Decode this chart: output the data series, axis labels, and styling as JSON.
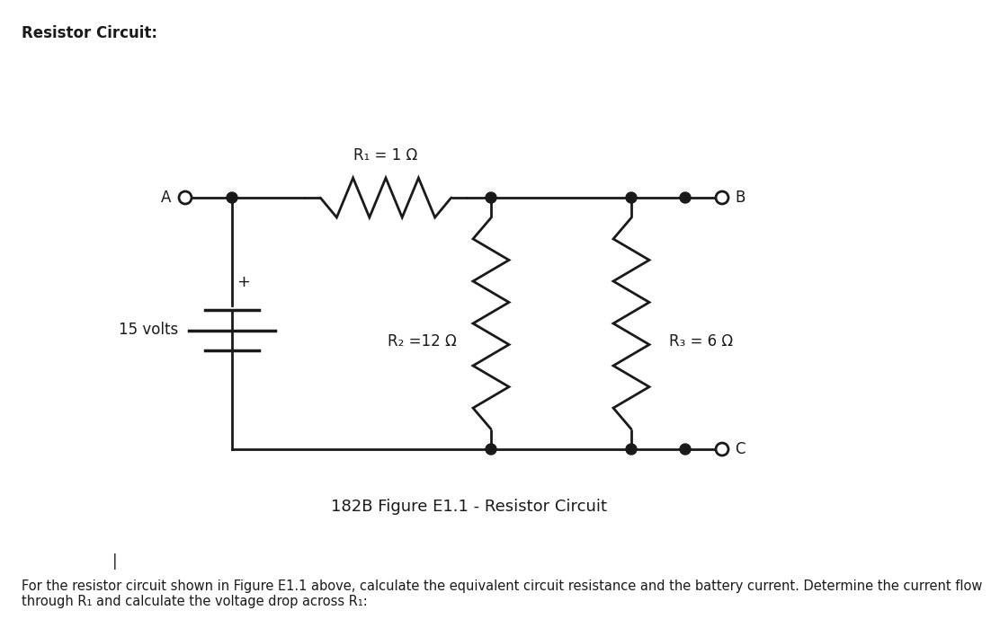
{
  "title": "Resistor Circuit:",
  "caption": "182B Figure E1.1 - Resistor Circuit",
  "footer": "For the resistor circuit shown in Figure E1.1 above, calculate the equivalent circuit resistance and the battery current. Determine the current flow\nthrough R₁ and calculate the voltage drop across R₁:",
  "label_A": "A",
  "label_B": "B",
  "label_C": "C",
  "label_R1": "R₁ = 1 Ω",
  "label_R2": "R₂ =12 Ω",
  "label_R3": "R₃ = 6 Ω",
  "label_volts": "15 volts",
  "label_plus": "+",
  "bg_color": "#ffffff",
  "line_color": "#1a1a1a",
  "font_size_title": 12,
  "font_size_labels": 11,
  "font_size_caption": 13,
  "font_size_footer": 10.5
}
